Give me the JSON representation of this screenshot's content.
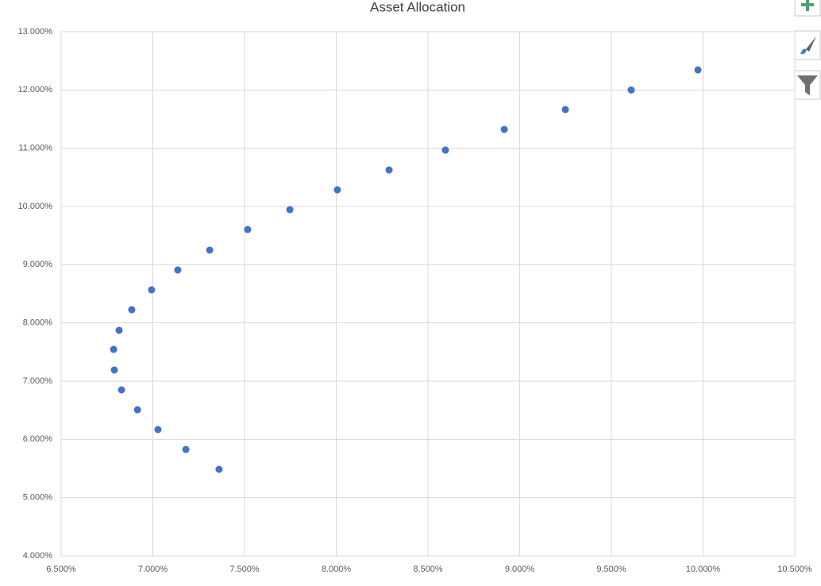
{
  "chart_data": {
    "type": "scatter",
    "title": "Asset Allocation",
    "series": [
      {
        "color": "#4472c4",
        "x": [
          9.972,
          9.608,
          9.249,
          8.916,
          8.595,
          8.288,
          8.006,
          7.747,
          7.517,
          7.31,
          7.136,
          6.993,
          6.885,
          6.816,
          6.786,
          6.79,
          6.829,
          6.916,
          7.028,
          7.18,
          7.361
        ],
        "values": [
          12.345,
          12.0,
          11.664,
          11.323,
          10.968,
          10.627,
          10.286,
          9.945,
          9.604,
          9.25,
          8.909,
          8.568,
          8.227,
          7.873,
          7.545,
          7.191,
          6.85,
          6.509,
          6.168,
          5.827,
          5.486
        ]
      }
    ],
    "xlim": [
      6.5,
      10.5
    ],
    "xticks": [
      {
        "value": 6.5,
        "label": "6.500%"
      },
      {
        "value": 7,
        "label": "7.000%"
      },
      {
        "value": 7.5,
        "label": "7.500%"
      },
      {
        "value": 8,
        "label": "8.000%"
      },
      {
        "value": 8.5,
        "label": "8.500%"
      },
      {
        "value": 9,
        "label": "9.000%"
      },
      {
        "value": 9.5,
        "label": "9.500%"
      },
      {
        "value": 10,
        "label": "10.000%"
      },
      {
        "value": 10.5,
        "label": "10.500%"
      }
    ],
    "ylim": [
      4,
      13
    ],
    "yticks": [
      {
        "value": 4,
        "label": "4.000%"
      },
      {
        "value": 5,
        "label": "5.000%"
      },
      {
        "value": 6,
        "label": "6.000%"
      },
      {
        "value": 7,
        "label": "7.000%"
      },
      {
        "value": 8,
        "label": "8.000%"
      },
      {
        "value": 9,
        "label": "9.000%"
      },
      {
        "value": 10,
        "label": "10.000%"
      },
      {
        "value": 11,
        "label": "11.000%"
      },
      {
        "value": 12,
        "label": "12.000%"
      },
      {
        "value": 13,
        "label": "13.000%"
      }
    ],
    "grid": true
  }
}
